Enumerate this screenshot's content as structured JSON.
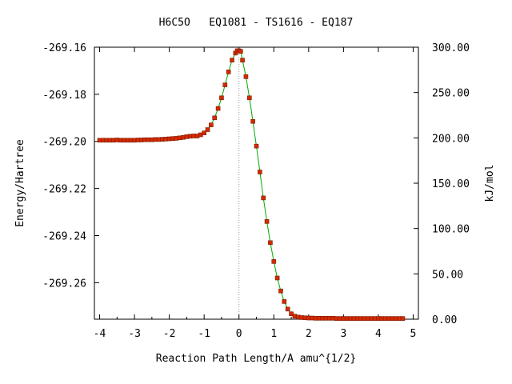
{
  "chart_data": {
    "type": "scatter",
    "title": "H6C5O   EQ1081 - TS1616 - EQ187",
    "xlabel": "Reaction Path Length/A amu^{1/2}",
    "ylabel": "Energy/Hartree",
    "y2label": "kJ/mol",
    "xlim": [
      -4.15,
      5.15
    ],
    "ylim": [
      -269.2755,
      -269.16
    ],
    "y2lim": [
      0,
      300
    ],
    "x_ticks": [
      "-4",
      "-3",
      "-2",
      "-1",
      "0",
      "1",
      "2",
      "3",
      "4",
      "5"
    ],
    "y_ticks": [
      "-269.16",
      "-269.18",
      "-269.20",
      "-269.22",
      "-269.24",
      "-269.26"
    ],
    "y2_ticks": [
      "300.00",
      "250.00",
      "200.00",
      "150.00",
      "100.00",
      "50.00",
      "0.00"
    ],
    "ts_x": 0,
    "grid": false,
    "colors": {
      "points": "#d42a00",
      "point_edge": "#7a1a00",
      "line": "#00aa00",
      "ts_line": "#999999"
    },
    "series": [
      {
        "x": [
          -4.0,
          -3.9,
          -3.8,
          -3.7,
          -3.6,
          -3.5,
          -3.4,
          -3.3,
          -3.2,
          -3.1,
          -3.0,
          -2.9,
          -2.8,
          -2.7,
          -2.6,
          -2.5,
          -2.4,
          -2.3,
          -2.2,
          -2.1,
          -2.0,
          -1.9,
          -1.8,
          -1.7,
          -1.6,
          -1.5,
          -1.4,
          -1.3,
          -1.2,
          -1.1,
          -1.0,
          -0.9,
          -0.8,
          -0.7,
          -0.6,
          -0.5,
          -0.4,
          -0.3,
          -0.2,
          -0.1,
          -0.05,
          0.0,
          0.05,
          0.1,
          0.2,
          0.3,
          0.4,
          0.5,
          0.6,
          0.7,
          0.8,
          0.9,
          1.0,
          1.1,
          1.2,
          1.3,
          1.4,
          1.5,
          1.6,
          1.7,
          1.8,
          1.9,
          2.0,
          2.1,
          2.2,
          2.3,
          2.4,
          2.5,
          2.6,
          2.7,
          2.8,
          2.9,
          3.0,
          3.1,
          3.2,
          3.3,
          3.4,
          3.5,
          3.6,
          3.7,
          3.8,
          3.9,
          4.0,
          4.1,
          4.2,
          4.3,
          4.4,
          4.5,
          4.6,
          4.7
        ],
        "y": [
          -269.1995,
          -269.1995,
          -269.1995,
          -269.1995,
          -269.1995,
          -269.1994,
          -269.1995,
          -269.1995,
          -269.1995,
          -269.1995,
          -269.1995,
          -269.1994,
          -269.1994,
          -269.1993,
          -269.1993,
          -269.1993,
          -269.1992,
          -269.1992,
          -269.1991,
          -269.199,
          -269.1989,
          -269.1988,
          -269.1987,
          -269.1985,
          -269.1983,
          -269.198,
          -269.1978,
          -269.1977,
          -269.1977,
          -269.1972,
          -269.1964,
          -269.195,
          -269.193,
          -269.19,
          -269.186,
          -269.1815,
          -269.176,
          -269.1705,
          -269.1655,
          -269.1625,
          -269.1615,
          -269.1615,
          -269.1618,
          -269.1655,
          -269.1725,
          -269.1815,
          -269.1915,
          -269.202,
          -269.213,
          -269.224,
          -269.234,
          -269.243,
          -269.251,
          -269.258,
          -269.2635,
          -269.268,
          -269.2712,
          -269.2732,
          -269.2742,
          -269.2746,
          -269.2748,
          -269.2749,
          -269.275,
          -269.275,
          -269.2751,
          -269.2751,
          -269.2751,
          -269.2751,
          -269.2751,
          -269.2751,
          -269.2752,
          -269.2752,
          -269.2752,
          -269.2752,
          -269.2752,
          -269.2752,
          -269.2752,
          -269.2752,
          -269.2752,
          -269.2752,
          -269.2752,
          -269.2752,
          -269.2752,
          -269.2752,
          -269.2752,
          -269.2752,
          -269.2752,
          -269.2752,
          -269.2752,
          -269.2752
        ]
      }
    ]
  }
}
